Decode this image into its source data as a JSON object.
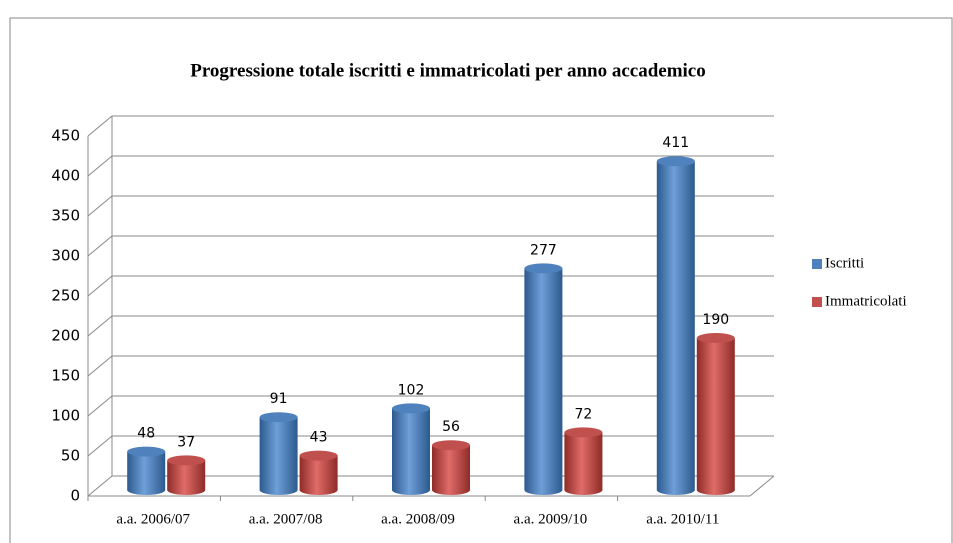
{
  "chart_data": {
    "type": "bar3d",
    "title": "Progressione totale iscritti e immatricolati per anno accademico",
    "categories": [
      "a.a. 2006/07",
      "a.a. 2007/08",
      "a.a. 2008/09",
      "a.a. 2009/10",
      "a.a. 2010/11"
    ],
    "series": [
      {
        "name": "Iscritti",
        "color": "#4f81bd",
        "values": [
          48,
          91,
          102,
          277,
          411
        ]
      },
      {
        "name": "Immatricolati",
        "color": "#c0504d",
        "values": [
          37,
          43,
          56,
          72,
          190
        ]
      }
    ],
    "ylim": [
      0,
      450
    ],
    "yticks": [
      0,
      50,
      100,
      150,
      200,
      250,
      300,
      350,
      400,
      450
    ],
    "grid": true,
    "legend": "right"
  }
}
